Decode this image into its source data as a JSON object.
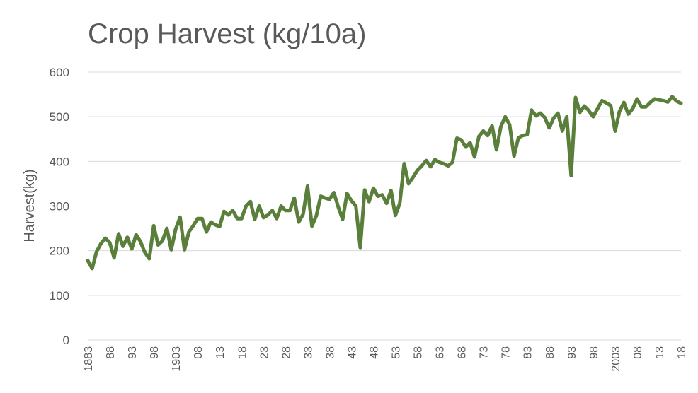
{
  "chart_data": {
    "type": "line",
    "title": "Crop Harvest (kg/10a)",
    "xlabel": "",
    "ylabel": "Harvest(kg)",
    "ylim": [
      0,
      600
    ],
    "yticks": [
      0,
      100,
      200,
      300,
      400,
      500,
      600
    ],
    "grid": true,
    "legend": "none",
    "x_tick_labels": [
      "1883",
      "88",
      "93",
      "98",
      "1903",
      "08",
      "13",
      "18",
      "23",
      "28",
      "33",
      "38",
      "43",
      "48",
      "53",
      "58",
      "63",
      "68",
      "73",
      "78",
      "83",
      "88",
      "93",
      "98",
      "2003",
      "08",
      "13",
      "18"
    ],
    "series": [
      {
        "color": "#5a7f3a",
        "x": [
          1883,
          1884,
          1885,
          1886,
          1887,
          1888,
          1889,
          1890,
          1891,
          1892,
          1893,
          1894,
          1895,
          1896,
          1897,
          1898,
          1899,
          1900,
          1901,
          1902,
          1903,
          1904,
          1905,
          1906,
          1907,
          1908,
          1909,
          1910,
          1911,
          1912,
          1913,
          1914,
          1915,
          1916,
          1917,
          1918,
          1919,
          1920,
          1921,
          1922,
          1923,
          1924,
          1925,
          1926,
          1927,
          1928,
          1929,
          1930,
          1931,
          1932,
          1933,
          1934,
          1935,
          1936,
          1937,
          1938,
          1939,
          1940,
          1941,
          1942,
          1943,
          1944,
          1945,
          1946,
          1947,
          1948,
          1949,
          1950,
          1951,
          1952,
          1953,
          1954,
          1955,
          1956,
          1957,
          1958,
          1959,
          1960,
          1961,
          1962,
          1963,
          1964,
          1965,
          1966,
          1967,
          1968,
          1969,
          1970,
          1971,
          1972,
          1973,
          1974,
          1975,
          1976,
          1977,
          1978,
          1979,
          1980,
          1981,
          1982,
          1983,
          1984,
          1985,
          1986,
          1987,
          1988,
          1989,
          1990,
          1991,
          1992,
          1993,
          1994,
          1995,
          1996,
          1997,
          1998,
          1999,
          2000,
          2001,
          2002,
          2003,
          2004,
          2005,
          2006,
          2007,
          2008,
          2009,
          2010,
          2011,
          2012,
          2013,
          2014,
          2015,
          2016,
          2017,
          2018
        ],
        "values": [
          178,
          160,
          198,
          216,
          228,
          218,
          184,
          238,
          210,
          230,
          204,
          236,
          220,
          196,
          182,
          256,
          213,
          222,
          250,
          202,
          248,
          275,
          202,
          242,
          256,
          272,
          272,
          242,
          264,
          258,
          254,
          288,
          280,
          290,
          272,
          272,
          300,
          310,
          270,
          300,
          274,
          280,
          290,
          272,
          300,
          290,
          290,
          318,
          264,
          282,
          345,
          255,
          278,
          322,
          318,
          315,
          330,
          298,
          270,
          328,
          312,
          300,
          207,
          336,
          310,
          340,
          322,
          325,
          306,
          335,
          279,
          306,
          395,
          350,
          364,
          380,
          390,
          402,
          388,
          404,
          398,
          395,
          390,
          398,
          452,
          448,
          432,
          442,
          410,
          456,
          468,
          458,
          480,
          426,
          478,
          500,
          482,
          412,
          453,
          458,
          460,
          515,
          502,
          508,
          498,
          475,
          497,
          508,
          468,
          500,
          368,
          543,
          510,
          524,
          514,
          500,
          518,
          536,
          531,
          525,
          468,
          512,
          532,
          506,
          518,
          540,
          522,
          522,
          532,
          540,
          538,
          536,
          533,
          545,
          535,
          530
        ]
      }
    ]
  }
}
